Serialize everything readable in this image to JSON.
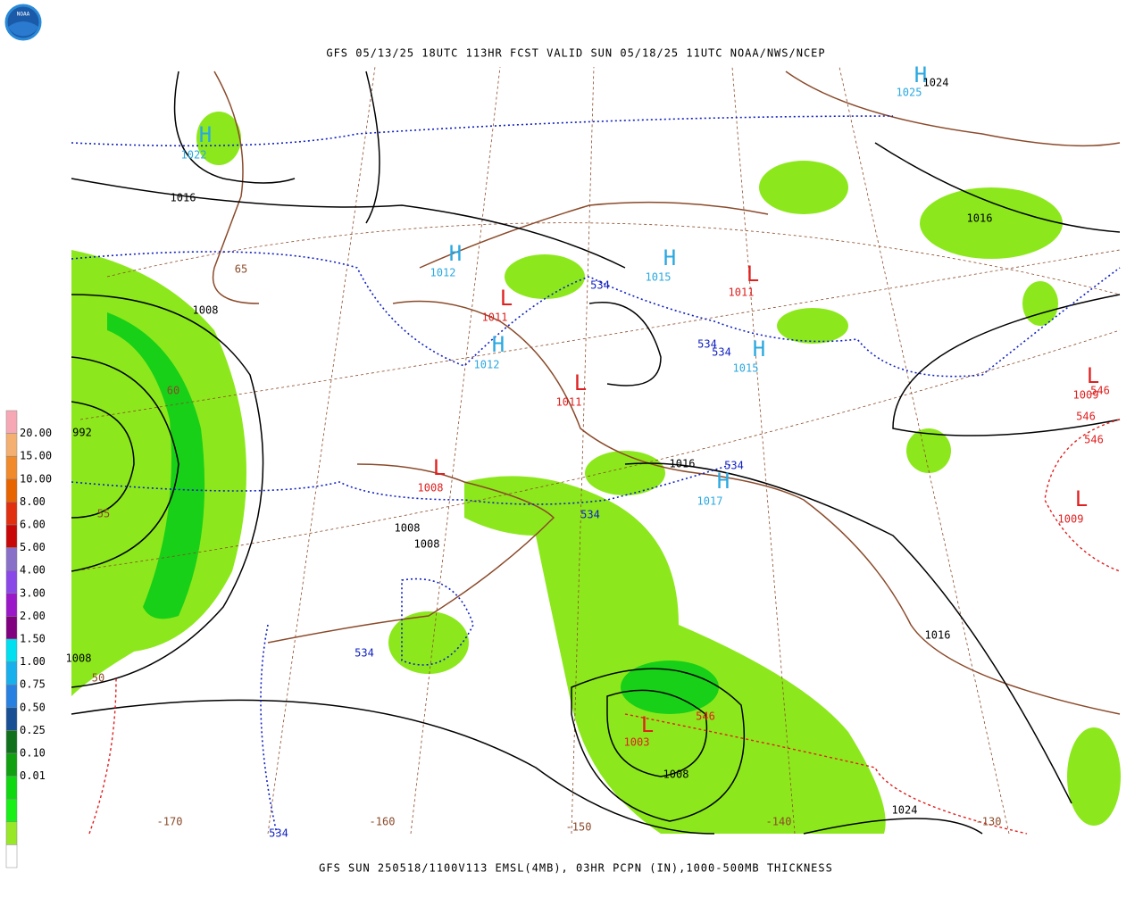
{
  "header": {
    "title": "GFS 05/13/25 18UTC 113HR FCST VALID SUN 05/18/25 11UTC NOAA/NWS/NCEP",
    "logo": "NOAA"
  },
  "footer": {
    "caption": "GFS SUN 250518/1100V113 EMSL(4MB), 03HR PCPN (IN),1000-500MB THICKNESS"
  },
  "legend": {
    "colors": [
      "#f6a9b4",
      "#f3b070",
      "#f08a2a",
      "#e86400",
      "#e03010",
      "#c80808",
      "#8870c8",
      "#8a48e8",
      "#9a18c8",
      "#800080",
      "#00e0f0",
      "#18b0ec",
      "#2880e0",
      "#184f94",
      "#10701c",
      "#10a010",
      "#10d810",
      "#18f018",
      "#98e828",
      "#ffffff"
    ],
    "labels": [
      "20.00",
      "15.00",
      "10.00",
      "8.00",
      "6.00",
      "5.00",
      "4.00",
      "3.00",
      "2.00",
      "1.50",
      "1.00",
      "0.75",
      "0.50",
      "0.25",
      "0.10",
      "0.01"
    ]
  },
  "map": {
    "centers": [
      {
        "letter": "H",
        "value": "1022"
      },
      {
        "letter": "H",
        "value": "1012"
      },
      {
        "letter": "L",
        "value": "1011"
      },
      {
        "letter": "H",
        "value": "1012"
      },
      {
        "letter": "L",
        "value": "1011"
      },
      {
        "letter": "H",
        "value": "1015"
      },
      {
        "letter": "L",
        "value": "1011"
      },
      {
        "letter": "H",
        "value": "1015"
      },
      {
        "letter": "H",
        "value": "1025"
      },
      {
        "letter": "L",
        "value": "1009"
      },
      {
        "letter": "L",
        "value": "1009"
      },
      {
        "letter": "L",
        "value": "1008"
      },
      {
        "letter": "H",
        "value": "1017"
      },
      {
        "letter": "L",
        "value": "1003"
      }
    ],
    "isobar_labels": [
      "1024",
      "1016",
      "1016",
      "1008",
      "992",
      "1016",
      "1008",
      "1008",
      "1008",
      "1024",
      "1016",
      "1008"
    ],
    "thickness_labels_blue": [
      "534",
      "534",
      "534",
      "534",
      "534",
      "534",
      "534"
    ],
    "thickness_labels_red": [
      "546",
      "546",
      "546",
      "546"
    ],
    "grid_labels": [
      "-170",
      "-160",
      "-150",
      "-140",
      "-130",
      "65",
      "60",
      "55",
      "50"
    ]
  }
}
